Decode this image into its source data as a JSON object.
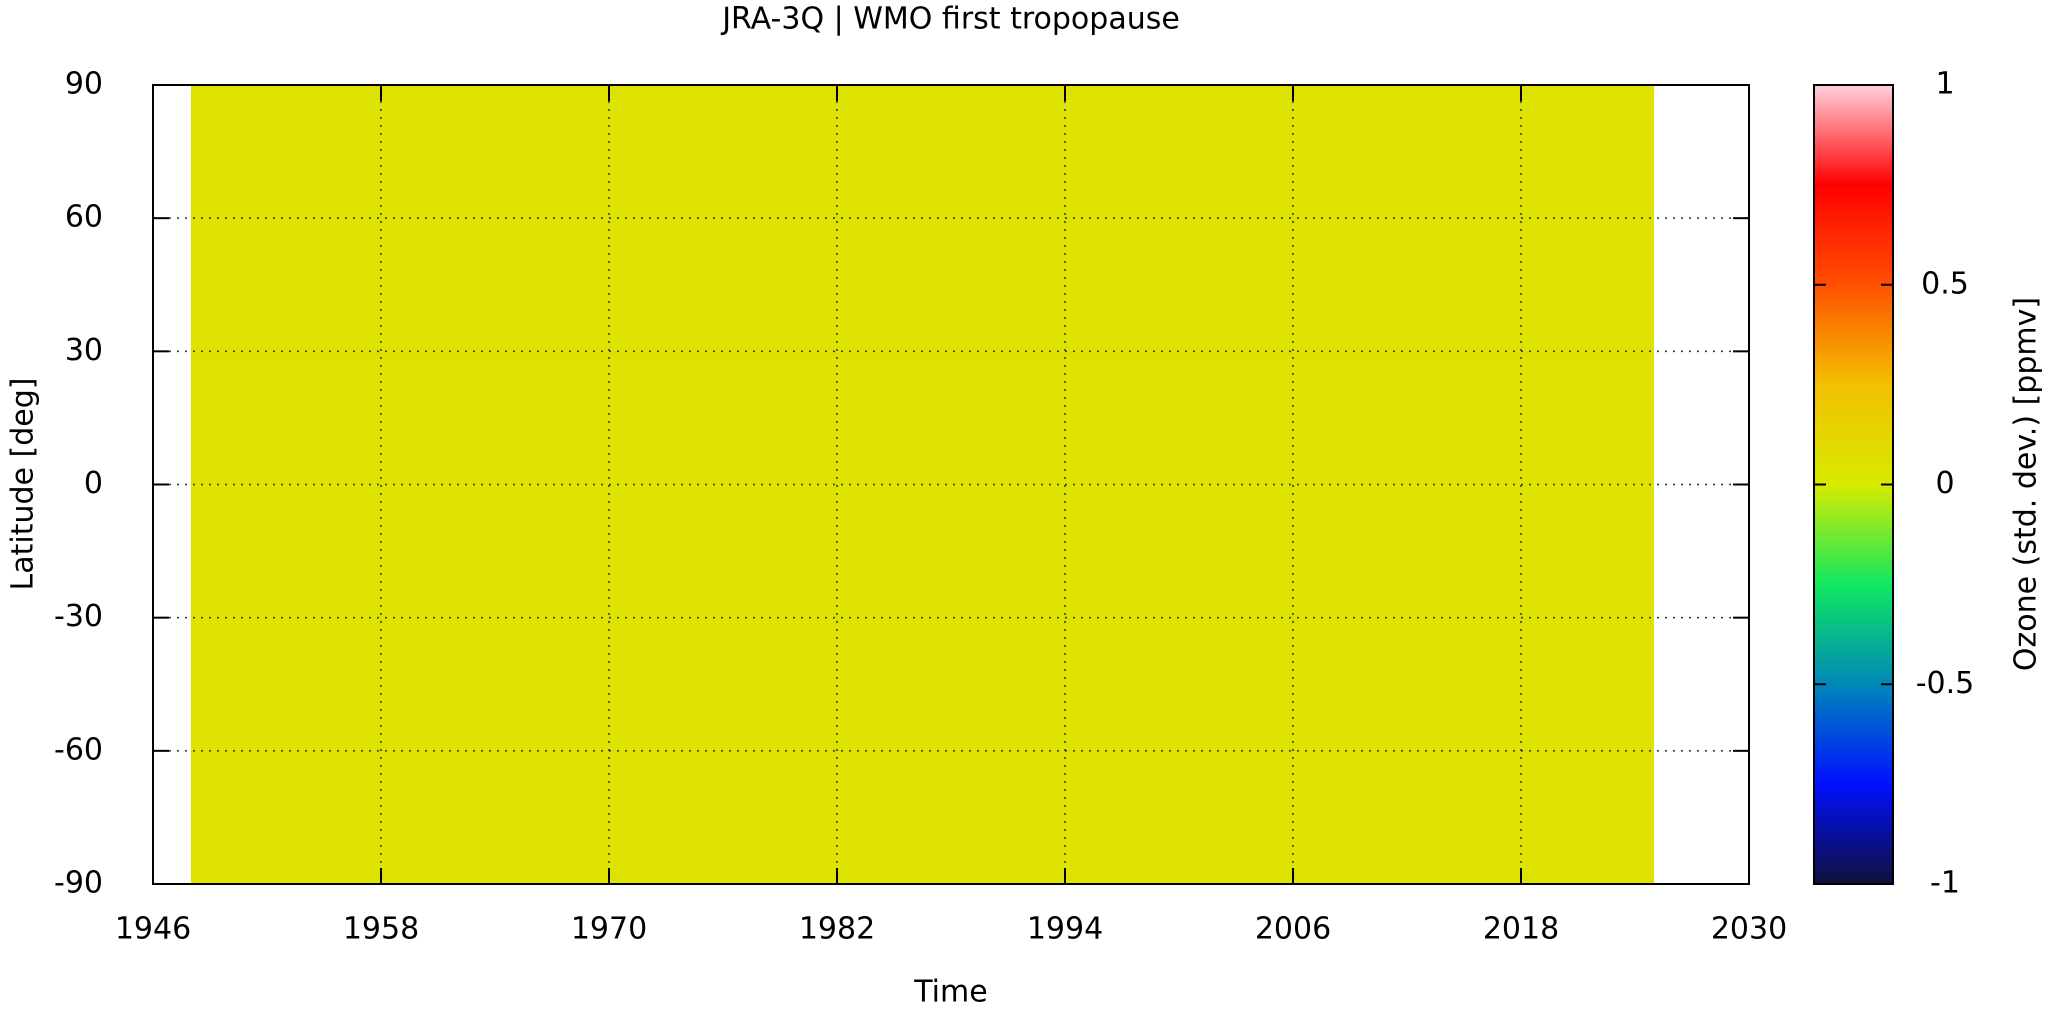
{
  "chart_data": {
    "type": "heatmap",
    "title": "JRA-3Q | WMO first tropopause",
    "x_label": "Time",
    "y_label": "Latitude [deg]",
    "colorbar_label": "Ozone (std. dev.) [ppmv]",
    "x": [
      1948,
      2025
    ],
    "y": [
      -90,
      90
    ],
    "values": [
      [
        0.05
      ]
    ],
    "xlim": [
      1946,
      2030
    ],
    "xticks": [
      1946,
      1958,
      1970,
      1982,
      1994,
      2006,
      2018,
      2030
    ],
    "ylim": [
      -90,
      90
    ],
    "yticks": [
      -90,
      -60,
      -30,
      0,
      30,
      60,
      90
    ],
    "clim": [
      -1,
      1
    ],
    "cticks": [
      -1,
      -0.5,
      0,
      0.5,
      1
    ],
    "colormap": [
      "#10103a",
      "#0010ff",
      "#0088b8",
      "#10e860",
      "#d8ea00",
      "#f2c000",
      "#ff5000",
      "#ff0000",
      "#ffd0dc"
    ],
    "grid": true
  }
}
